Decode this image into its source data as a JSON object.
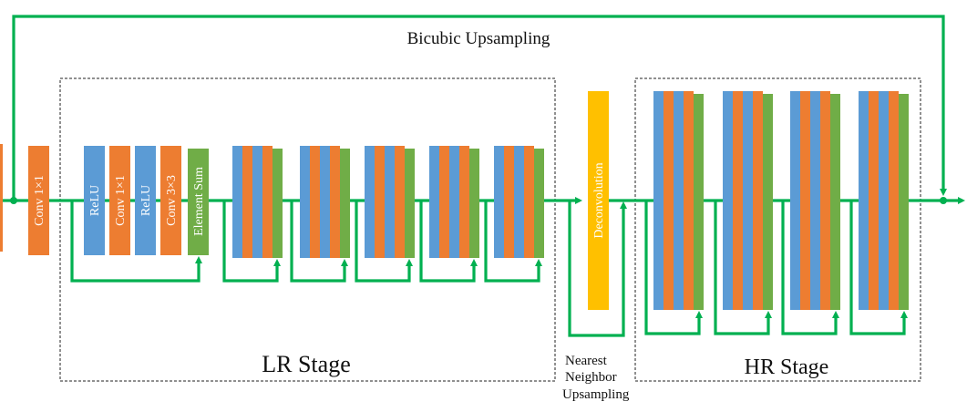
{
  "colors": {
    "green": "#00B050",
    "blue": "#5B9BD5",
    "orange": "#ED7D31",
    "lightgreen": "#70AD47",
    "yellow": "#FFC000",
    "stage_border": "#222222"
  },
  "labels": {
    "bicubic": "Bicubic Upsampling",
    "lr_stage": "LR Stage",
    "hr_stage": "HR Stage",
    "nearest_1": "Nearest",
    "nearest_2": "Neighbor",
    "nearest_3": "Upsampling"
  },
  "blocks": {
    "conv_in": "Conv 1×1",
    "relu_1": "ReLU",
    "conv_a": "Conv 1×1",
    "relu_2": "ReLU",
    "conv_b": "Conv 3×3",
    "sum": "Element Sum",
    "deconv": "Deconvolution"
  }
}
